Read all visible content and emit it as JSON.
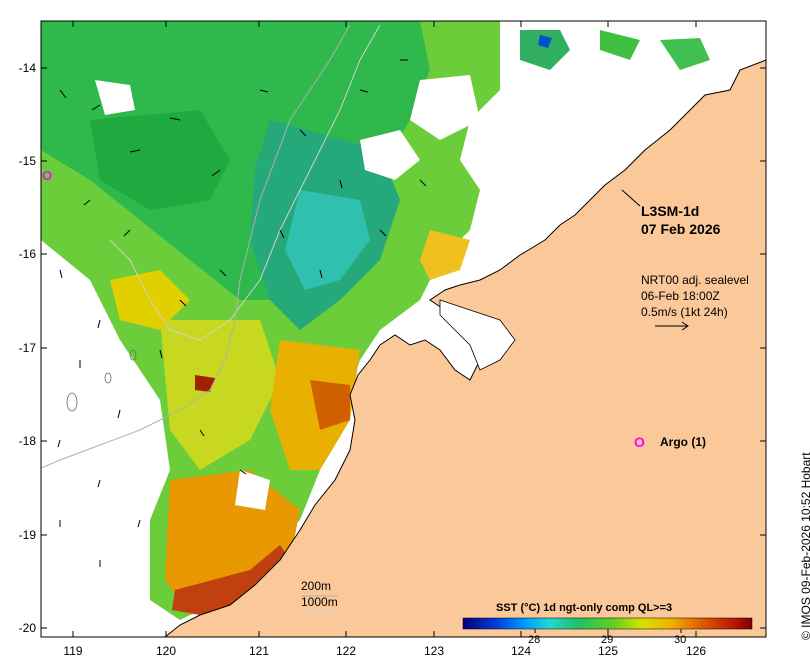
{
  "map": {
    "title_line1": "L3SM-1d",
    "title_line2": "07 Feb 2026",
    "current_line1": "NRT00 adj. sealevel",
    "current_line2": "06-Feb 18:00Z",
    "current_line3": "0.5m/s (1kt 24h)",
    "argo_marker": "O",
    "argo_label": "Argo (1)",
    "credit": "© IMOS 09-Feb-2026 10:52 Hobart",
    "lat_ticks": [
      "-14",
      "-15",
      "-16",
      "-17",
      "-18",
      "-19",
      "-20"
    ],
    "lon_ticks": [
      "119",
      "120",
      "121",
      "122",
      "123",
      "124",
      "125",
      "126"
    ],
    "isobath_1": "200m",
    "isobath_2": "1000m",
    "colorbar_title": "SST (°C) 1d ngt-only comp QL>=3",
    "colorbar_ticks": [
      "28",
      "29",
      "30"
    ],
    "colors": {
      "land": "#fbc89a",
      "sst_low": "#00008b",
      "sst_mid": "#22c55e",
      "sst_high": "#8b0000",
      "argo": "#ff00ff"
    }
  }
}
